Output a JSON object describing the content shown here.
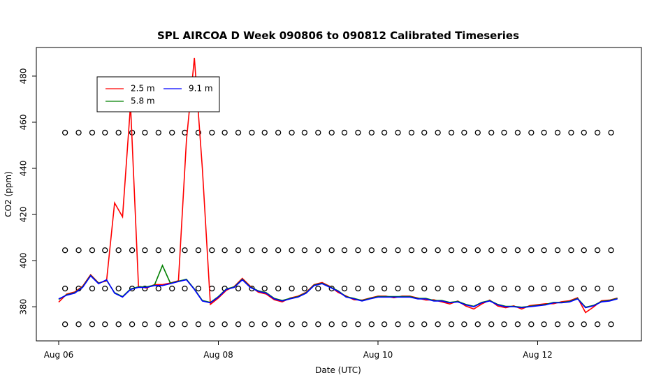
{
  "chart_data": {
    "type": "line",
    "title": "SPL AIRCOA D  Week 090806 to 090812  Calibrated Timeseries",
    "x_label": "Date (UTC)",
    "y_label": "CO2 (ppm)",
    "xlim": [
      -0.28,
      7.3
    ],
    "xticks": [
      {
        "value": 0,
        "label": "Aug 06"
      },
      {
        "value": 2,
        "label": "Aug 08"
      },
      {
        "value": 4,
        "label": "Aug 10"
      },
      {
        "value": 6,
        "label": "Aug 12"
      }
    ],
    "ylim": [
      365.2,
      492.4
    ],
    "yticks": [
      380,
      400,
      420,
      440,
      460,
      480
    ],
    "x": [
      0,
      0.1,
      0.2,
      0.3,
      0.4,
      0.5,
      0.6,
      0.7,
      0.8,
      0.9,
      1,
      1.1,
      1.2,
      1.3,
      1.4,
      1.5,
      1.6,
      1.7,
      1.8,
      1.9,
      2,
      2.1,
      2.2,
      2.3,
      2.4,
      2.5,
      2.6,
      2.7,
      2.8,
      2.9,
      3,
      3.1,
      3.2,
      3.3,
      3.4,
      3.5,
      3.6,
      3.7,
      3.8,
      3.9,
      4,
      4.1,
      4.2,
      4.3,
      4.4,
      4.5,
      4.6,
      4.7,
      4.8,
      4.9,
      5,
      5.1,
      5.2,
      5.3,
      5.4,
      5.5,
      5.6,
      5.7,
      5.8,
      5.9,
      6,
      6.1,
      6.2,
      6.3,
      6.4,
      6.5,
      6.6,
      6.7,
      6.8,
      6.9,
      7
    ],
    "series": [
      {
        "name": "2.5 m",
        "color": "#ff0000",
        "values": [
          382,
          385.5,
          386.4,
          388.9,
          393.9,
          390.3,
          391.2,
          425,
          419,
          467.6,
          388.9,
          388.1,
          389.6,
          389.6,
          390.3,
          391.3,
          452,
          487.9,
          440,
          381,
          383.8,
          387.1,
          388.8,
          392.3,
          388.9,
          386.3,
          385.5,
          383,
          382.1,
          383.8,
          384.6,
          386.3,
          389.6,
          390.5,
          388.8,
          386.2,
          384.7,
          383,
          382.9,
          383.8,
          384.6,
          384.6,
          383.9,
          384.6,
          384.6,
          383.8,
          382.9,
          383,
          382.1,
          381.2,
          382.5,
          380.3,
          379,
          381.2,
          382.9,
          380.3,
          379.6,
          380.4,
          379,
          380.5,
          380.9,
          381.3,
          381.3,
          382.2,
          382.6,
          383.9,
          377.5,
          379.9,
          382.6,
          382.9,
          383.8
        ]
      },
      {
        "name": "5.8 m",
        "color": "#008000",
        "values": [
          383.2,
          385.2,
          386.1,
          388.6,
          393.6,
          390.2,
          391.5,
          386.1,
          384.4,
          387.7,
          388.6,
          388.6,
          389.4,
          397.9,
          390.2,
          391.1,
          391.9,
          387.7,
          382.7,
          381.9,
          384.4,
          387.7,
          388.6,
          391.9,
          388.6,
          386.9,
          386.1,
          383.6,
          382.7,
          383.6,
          384.4,
          386.1,
          389.4,
          390.2,
          388.6,
          386.9,
          384.4,
          383.6,
          382.7,
          383.6,
          384.4,
          384.4,
          384.4,
          384.4,
          384.4,
          383.6,
          383.6,
          382.7,
          382.7,
          381.9,
          382.3,
          381,
          380.2,
          381.9,
          382.7,
          381,
          380.2,
          380.2,
          379.8,
          380.2,
          380.6,
          381,
          381.9,
          381.9,
          382.3,
          383.6,
          379.8,
          380.6,
          382.3,
          382.7,
          383.6
        ]
      },
      {
        "name": "9.1 m",
        "color": "#0000ff",
        "values": [
          383.4,
          385,
          385.9,
          388.4,
          393.4,
          390,
          391.7,
          385.9,
          384.2,
          387.5,
          388.4,
          388.4,
          389.2,
          389.2,
          390,
          390.9,
          391.7,
          387.5,
          382.5,
          381.7,
          384.2,
          387.5,
          388.4,
          391.7,
          388.4,
          386.7,
          385.9,
          383.4,
          382.5,
          383.4,
          384.2,
          385.9,
          389.2,
          390,
          388.4,
          386.7,
          384.2,
          383.4,
          382.5,
          383.4,
          384.2,
          384.2,
          384.2,
          384.2,
          384.2,
          383.4,
          383.4,
          382.5,
          382.5,
          381.7,
          382.1,
          380.8,
          380,
          381.7,
          382.5,
          380.8,
          380,
          380,
          379.6,
          380,
          380.4,
          380.8,
          381.7,
          381.7,
          382.1,
          383.4,
          379.6,
          380.4,
          382.1,
          382.5,
          383.4
        ]
      }
    ],
    "calibration": {
      "color": "#000000",
      "x": [
        0.08,
        0.25,
        0.42,
        0.58,
        0.75,
        0.92,
        1.08,
        1.25,
        1.42,
        1.58,
        1.75,
        1.92,
        2.08,
        2.25,
        2.42,
        2.58,
        2.75,
        2.92,
        3.08,
        3.25,
        3.42,
        3.58,
        3.75,
        3.92,
        4.08,
        4.25,
        4.42,
        4.58,
        4.75,
        4.92,
        5.08,
        5.25,
        5.42,
        5.58,
        5.75,
        5.92,
        6.08,
        6.25,
        6.42,
        6.58,
        6.75,
        6.92
      ],
      "levels": [
        372.4,
        387.9,
        404.5,
        455.5
      ]
    },
    "legend": "top-left"
  }
}
